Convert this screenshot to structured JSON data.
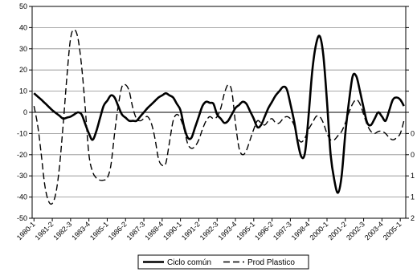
{
  "chart_data": {
    "type": "line",
    "title": "",
    "xlabel": "",
    "ylabel": "",
    "ylim": [
      -50,
      50
    ],
    "yticks": [
      -50,
      -40,
      -30,
      -20,
      -10,
      0,
      10,
      20,
      30,
      40,
      50
    ],
    "y2ticks_visible": [
      "2",
      "1",
      "1",
      "0",
      "0",
      "",
      "",
      "",
      "",
      "",
      ""
    ],
    "grid": "horizontal",
    "legend": "bottom",
    "xtick_labels": [
      "1980-1",
      "1981-2",
      "1982-3",
      "1983-4",
      "1985-1",
      "1986-2",
      "1987-3",
      "1988-4",
      "1990-1",
      "1991-2",
      "1992-3",
      "1993-4",
      "1995-1",
      "1996-2",
      "1997-3",
      "1998-4",
      "2000-1",
      "2001-2",
      "2002-3",
      "2003-4",
      "2005-1"
    ],
    "n_points": 102,
    "series": [
      {
        "name": "Ciclo común",
        "style": "solid",
        "color": "#000000",
        "keypoints": [
          [
            0,
            9
          ],
          [
            2,
            6
          ],
          [
            5,
            1
          ],
          [
            8,
            -3
          ],
          [
            10,
            -2
          ],
          [
            12,
            0
          ],
          [
            13,
            -1
          ],
          [
            15,
            -10
          ],
          [
            16,
            -13
          ],
          [
            17,
            -9
          ],
          [
            19,
            3
          ],
          [
            21,
            8
          ],
          [
            22,
            7
          ],
          [
            24,
            -1
          ],
          [
            26,
            -4
          ],
          [
            28,
            -4
          ],
          [
            31,
            2
          ],
          [
            34,
            7
          ],
          [
            36,
            9
          ],
          [
            38,
            7
          ],
          [
            40,
            1
          ],
          [
            41,
            -7
          ],
          [
            42,
            -12
          ],
          [
            43,
            -12
          ],
          [
            45,
            -2
          ],
          [
            46,
            3
          ],
          [
            47,
            5
          ],
          [
            49,
            4
          ],
          [
            50,
            -1
          ],
          [
            52,
            -5
          ],
          [
            53,
            -4
          ],
          [
            55,
            2
          ],
          [
            57,
            5
          ],
          [
            58,
            4
          ],
          [
            60,
            -3
          ],
          [
            61,
            -7
          ],
          [
            62,
            -6
          ],
          [
            64,
            2
          ],
          [
            66,
            8
          ],
          [
            68,
            12
          ],
          [
            69,
            11
          ],
          [
            70,
            4
          ],
          [
            71,
            -4
          ],
          [
            72,
            -14
          ],
          [
            73,
            -21
          ],
          [
            74,
            -19
          ],
          [
            75,
            -1
          ],
          [
            76,
            20
          ],
          [
            77,
            32
          ],
          [
            78,
            36
          ],
          [
            79,
            27
          ],
          [
            80,
            5
          ],
          [
            81,
            -20
          ],
          [
            82,
            -32
          ],
          [
            83,
            -38
          ],
          [
            84,
            -30
          ],
          [
            85,
            -10
          ],
          [
            86,
            5
          ],
          [
            87,
            17
          ],
          [
            88,
            17
          ],
          [
            89,
            10
          ],
          [
            90,
            2
          ],
          [
            91,
            -5
          ],
          [
            92,
            -6
          ],
          [
            94,
            0
          ],
          [
            95,
            -2
          ],
          [
            96,
            -4
          ],
          [
            97,
            1
          ],
          [
            98,
            6
          ],
          [
            99,
            7
          ],
          [
            100,
            6
          ],
          [
            101,
            3
          ]
        ]
      },
      {
        "name": "Prod Plastico",
        "style": "dashed",
        "color": "#000000",
        "keypoints": [
          [
            0,
            3
          ],
          [
            1,
            -6
          ],
          [
            2,
            -20
          ],
          [
            3,
            -35
          ],
          [
            4,
            -42
          ],
          [
            5,
            -43
          ],
          [
            6,
            -38
          ],
          [
            7,
            -25
          ],
          [
            8,
            -5
          ],
          [
            9,
            17
          ],
          [
            10,
            35
          ],
          [
            11,
            39
          ],
          [
            12,
            35
          ],
          [
            13,
            22
          ],
          [
            14,
            2
          ],
          [
            15,
            -20
          ],
          [
            16,
            -28
          ],
          [
            17,
            -31
          ],
          [
            18,
            -32
          ],
          [
            19,
            -32
          ],
          [
            20,
            -31
          ],
          [
            21,
            -25
          ],
          [
            22,
            -10
          ],
          [
            23,
            3
          ],
          [
            24,
            12
          ],
          [
            25,
            13
          ],
          [
            26,
            10
          ],
          [
            27,
            2
          ],
          [
            28,
            -3
          ],
          [
            29,
            -4
          ],
          [
            30,
            -3
          ],
          [
            31,
            -2
          ],
          [
            32,
            -5
          ],
          [
            33,
            -12
          ],
          [
            34,
            -22
          ],
          [
            35,
            -25
          ],
          [
            36,
            -24
          ],
          [
            37,
            -14
          ],
          [
            38,
            -4
          ],
          [
            39,
            -1
          ],
          [
            40,
            -3
          ],
          [
            41,
            -8
          ],
          [
            42,
            -15
          ],
          [
            43,
            -17
          ],
          [
            44,
            -16
          ],
          [
            45,
            -13
          ],
          [
            46,
            -8
          ],
          [
            47,
            -4
          ],
          [
            48,
            -2
          ],
          [
            49,
            -3
          ],
          [
            50,
            -2
          ],
          [
            51,
            2
          ],
          [
            52,
            9
          ],
          [
            53,
            13
          ],
          [
            54,
            10
          ],
          [
            55,
            -5
          ],
          [
            56,
            -17
          ],
          [
            57,
            -20
          ],
          [
            58,
            -18
          ],
          [
            59,
            -13
          ],
          [
            60,
            -8
          ],
          [
            61,
            -4
          ],
          [
            62,
            -5
          ],
          [
            63,
            -6
          ],
          [
            64,
            -4
          ],
          [
            65,
            -3
          ],
          [
            66,
            -5
          ],
          [
            67,
            -5
          ],
          [
            68,
            -3
          ],
          [
            69,
            -2
          ],
          [
            70,
            -3
          ],
          [
            71,
            -6
          ],
          [
            72,
            -12
          ],
          [
            73,
            -14
          ],
          [
            74,
            -12
          ],
          [
            75,
            -8
          ],
          [
            76,
            -5
          ],
          [
            77,
            -2
          ],
          [
            78,
            -2
          ],
          [
            79,
            -5
          ],
          [
            80,
            -10
          ],
          [
            81,
            -13
          ],
          [
            82,
            -13
          ],
          [
            83,
            -11
          ],
          [
            84,
            -9
          ],
          [
            85,
            -5
          ],
          [
            86,
            0
          ],
          [
            87,
            4
          ],
          [
            88,
            6
          ],
          [
            89,
            4
          ],
          [
            90,
            -1
          ],
          [
            91,
            -6
          ],
          [
            92,
            -9
          ],
          [
            93,
            -10
          ],
          [
            94,
            -9
          ],
          [
            95,
            -9
          ],
          [
            96,
            -10
          ],
          [
            97,
            -12
          ],
          [
            98,
            -13
          ],
          [
            99,
            -12
          ],
          [
            100,
            -10
          ],
          [
            101,
            -4
          ]
        ]
      }
    ]
  },
  "legend": {
    "items": [
      {
        "label": "Ciclo común"
      },
      {
        "label": "Prod Plastico"
      }
    ]
  }
}
